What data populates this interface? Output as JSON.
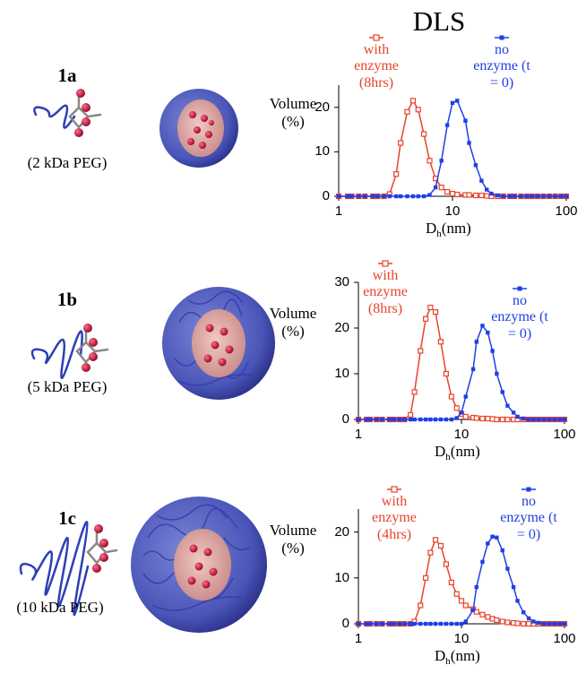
{
  "title": "DLS",
  "samples": [
    {
      "label": "1a",
      "caption": "(2 kDa PEG)"
    },
    {
      "label": "1b",
      "caption": "(5 kDa PEG)"
    },
    {
      "label": "1c",
      "caption": "(10 kDa PEG)"
    }
  ],
  "chart_data": [
    {
      "type": "line",
      "log_x": true,
      "xlabel": {
        "symbol": "D",
        "subscript": "h",
        "unit": "(nm)"
      },
      "ylabel": "Volume (%)",
      "xlim": [
        1,
        100
      ],
      "xticks": [
        1,
        10,
        100
      ],
      "ylim": [
        0,
        25
      ],
      "yticks": [
        0,
        10,
        20
      ],
      "x": [
        1.0,
        1.2,
        1.3,
        1.5,
        1.7,
        2.0,
        2.2,
        2.5,
        2.8,
        3.2,
        3.5,
        4.0,
        4.5,
        5.0,
        5.6,
        6.3,
        7.1,
        8.0,
        9.0,
        10,
        11,
        13,
        14,
        16,
        18,
        20,
        22,
        25,
        28,
        32,
        35,
        40,
        45,
        50,
        56,
        63,
        71,
        80,
        90,
        100
      ],
      "series": [
        {
          "name": "with enzyme (8hrs)",
          "color": "#e8432b",
          "values": [
            0,
            0,
            0,
            0,
            0,
            0,
            0,
            0,
            0.5,
            5,
            12,
            19,
            21.5,
            19.5,
            14,
            8,
            4,
            2,
            1,
            0.6,
            0.4,
            0.3,
            0.3,
            0.2,
            0.2,
            0.1,
            0,
            0,
            0,
            0,
            0,
            0,
            0,
            0,
            0,
            0,
            0,
            0,
            0,
            0
          ]
        },
        {
          "name": "no enzyme (t = 0)",
          "color": "#1f3fe6",
          "values": [
            0,
            0,
            0,
            0,
            0,
            0,
            0,
            0,
            0,
            0,
            0,
            0,
            0,
            0,
            0,
            0.3,
            2,
            8,
            16,
            21,
            21.5,
            17,
            12,
            7,
            3.5,
            1.5,
            0.6,
            0.2,
            0,
            0,
            0,
            0,
            0,
            0,
            0,
            0,
            0,
            0,
            0,
            0
          ]
        }
      ]
    },
    {
      "type": "line",
      "log_x": true,
      "xlabel": {
        "symbol": "D",
        "subscript": "h",
        "unit": "(nm)"
      },
      "ylabel": "Volume (%)",
      "xlim": [
        1,
        100
      ],
      "xticks": [
        1,
        10,
        100
      ],
      "ylim": [
        0,
        30
      ],
      "yticks": [
        0,
        10,
        20,
        30
      ],
      "x": [
        1.0,
        1.2,
        1.3,
        1.5,
        1.7,
        2.0,
        2.2,
        2.5,
        2.8,
        3.2,
        3.5,
        4.0,
        4.5,
        5.0,
        5.6,
        6.3,
        7.1,
        8.0,
        9.0,
        10,
        11,
        13,
        14,
        16,
        18,
        20,
        22,
        25,
        28,
        32,
        35,
        40,
        45,
        50,
        56,
        63,
        71,
        80,
        90,
        100
      ],
      "series": [
        {
          "name": "with enzyme (8hrs)",
          "color": "#e8432b",
          "values": [
            0,
            0,
            0,
            0,
            0,
            0,
            0,
            0,
            0,
            1,
            6,
            15,
            22,
            24.5,
            23.5,
            17,
            10,
            5,
            2.5,
            1.2,
            0.6,
            0.4,
            0.3,
            0.2,
            0.2,
            0.1,
            0,
            0,
            0,
            0,
            0,
            0,
            0,
            0,
            0,
            0,
            0,
            0,
            0,
            0
          ]
        },
        {
          "name": "no enzyme (t = 0)",
          "color": "#1f3fe6",
          "values": [
            0,
            0,
            0,
            0,
            0,
            0,
            0,
            0,
            0,
            0,
            0,
            0,
            0,
            0,
            0,
            0,
            0,
            0,
            0.3,
            1.5,
            5,
            11,
            17,
            20.5,
            19,
            15,
            10,
            6,
            3,
            1.5,
            0.6,
            0.2,
            0,
            0,
            0,
            0,
            0,
            0,
            0,
            0
          ]
        }
      ]
    },
    {
      "type": "line",
      "log_x": true,
      "xlabel": {
        "symbol": "D",
        "subscript": "h",
        "unit": "(nm)"
      },
      "ylabel": "Volume (%)",
      "xlim": [
        1,
        100
      ],
      "xticks": [
        1,
        10,
        100
      ],
      "ylim": [
        0,
        25
      ],
      "yticks": [
        0,
        10,
        20
      ],
      "x": [
        1.0,
        1.2,
        1.3,
        1.5,
        1.7,
        2.0,
        2.2,
        2.5,
        2.8,
        3.2,
        3.5,
        4.0,
        4.5,
        5.0,
        5.6,
        6.3,
        7.1,
        8.0,
        9.0,
        10,
        11,
        13,
        14,
        16,
        18,
        20,
        22,
        25,
        28,
        32,
        35,
        40,
        45,
        50,
        56,
        63,
        71,
        80,
        90,
        100
      ],
      "series": [
        {
          "name": "with enzyme (4hrs)",
          "color": "#e8432b",
          "values": [
            0,
            0,
            0,
            0,
            0,
            0,
            0,
            0,
            0,
            0,
            0.5,
            4,
            10,
            15.5,
            18.3,
            17,
            13,
            9,
            6.5,
            5,
            4,
            3.2,
            2.6,
            2,
            1.5,
            1.1,
            0.8,
            0.5,
            0.3,
            0.2,
            0.1,
            0,
            0,
            0,
            0,
            0,
            0,
            0,
            0,
            0
          ]
        },
        {
          "name": "no enzyme (t = 0)",
          "color": "#1f3fe6",
          "values": [
            0,
            0,
            0,
            0,
            0,
            0,
            0,
            0,
            0,
            0,
            0,
            0,
            0,
            0,
            0,
            0,
            0,
            0,
            0,
            0,
            0.5,
            3,
            8,
            13.5,
            17.5,
            19,
            18.8,
            16,
            12,
            8,
            5,
            2.5,
            1.2,
            0.5,
            0.2,
            0,
            0,
            0,
            0,
            0
          ]
        }
      ]
    }
  ]
}
